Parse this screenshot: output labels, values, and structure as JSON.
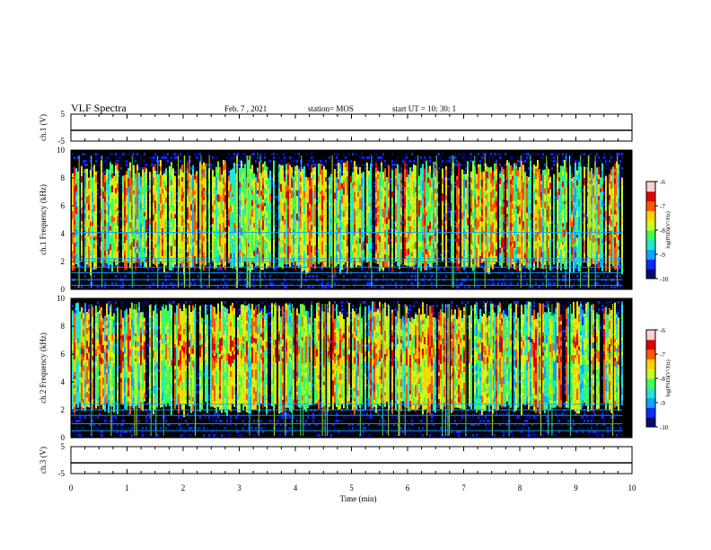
{
  "header": {
    "title": "VLF Spectra",
    "date": "Feb. 7 , 2021",
    "station": "station= MOS",
    "start": "start UT = 10: 30: 1"
  },
  "colors": {
    "background": "#ffffff",
    "spectrogram_background": "#000000",
    "axis": "#000000",
    "colormap": [
      "#08087a",
      "#0a2cff",
      "#0aa6ff",
      "#23e6d4",
      "#3cff5a",
      "#c8ff20",
      "#ffd400",
      "#ff5a00",
      "#e00000",
      "#ffd0d0"
    ]
  },
  "chart_data": [
    {
      "type": "line",
      "name": "ch.1 waveform",
      "ylabel": "ch.1 (V)",
      "ylim": [
        -5,
        5
      ],
      "yticks": [
        "5",
        "-5"
      ],
      "x": [
        0,
        10
      ],
      "y": [
        -1,
        -1
      ]
    },
    {
      "type": "heatmap",
      "name": "ch.1 spectrogram",
      "ylabel": "ch.1 Frequency (kHz)",
      "ylim": [
        0,
        10
      ],
      "yticks": [
        "0",
        "2",
        "4",
        "6",
        "8",
        "10"
      ],
      "xlim": [
        0,
        10
      ],
      "data_end_min": 9.83,
      "emission_band_khz": [
        1.5,
        9.3
      ],
      "bright_lines_khz": [
        0.3,
        0.7,
        1.2,
        1.6,
        2.0,
        2.2,
        4.1
      ],
      "colorbar": {
        "label": "log(PSD)(V²/Hz)",
        "range": [
          -10,
          -6
        ],
        "ticks": [
          "-6",
          "-7",
          "-8",
          "-9",
          "-10"
        ]
      }
    },
    {
      "type": "heatmap",
      "name": "ch.2 spectrogram",
      "ylabel": "ch.2 Frequency (kHz)",
      "ylim": [
        0,
        10
      ],
      "yticks": [
        "0",
        "2",
        "4",
        "6",
        "8",
        "10"
      ],
      "xlim": [
        0,
        10
      ],
      "data_end_min": 9.83,
      "emission_band_khz": [
        2.0,
        9.8
      ],
      "peak_band_khz": [
        5.5,
        7.5
      ],
      "bright_lines_khz": [
        0.5,
        1.0,
        1.6,
        2.0,
        2.4
      ],
      "colorbar": {
        "label": "log(PSD)(V²/Hz)",
        "range": [
          -10,
          -6
        ],
        "ticks": [
          "-6",
          "-7",
          "-8",
          "-9",
          "-10"
        ]
      }
    },
    {
      "type": "line",
      "name": "ch.3 waveform",
      "ylabel": "ch.3 (V)",
      "ylim": [
        -5,
        5
      ],
      "yticks": [
        "5",
        "-5"
      ],
      "x": [
        0,
        10
      ],
      "y": [
        -1,
        -1
      ]
    }
  ],
  "xaxis": {
    "label": "Time (min)",
    "xlim": [
      0,
      10
    ],
    "ticks": [
      "0",
      "1",
      "2",
      "3",
      "4",
      "5",
      "6",
      "7",
      "8",
      "9",
      "10"
    ]
  }
}
